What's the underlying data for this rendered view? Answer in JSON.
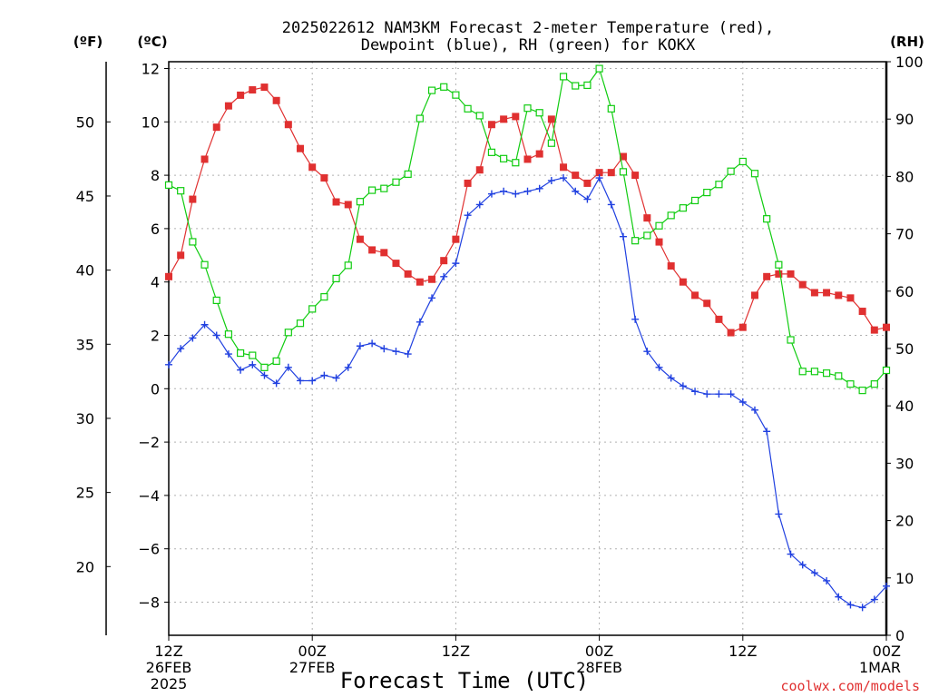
{
  "chart_data": {
    "type": "line",
    "title_line1": "2025022612 NAM3KM Forecast 2-meter Temperature (red),",
    "title_line2": "Dewpoint (blue), RH (green) for KOKX",
    "xlabel": "Forecast Time (UTC)",
    "credit": "coolwx.com/models",
    "unit_f": "(ºF)",
    "unit_c": "(ºC)",
    "unit_rh": "(RH)",
    "x_range_hours": [
      0,
      60
    ],
    "x_ticks": [
      {
        "hour": 0,
        "lines": [
          "12Z",
          "26FEB",
          "2025"
        ]
      },
      {
        "hour": 12,
        "lines": [
          "00Z",
          "27FEB"
        ]
      },
      {
        "hour": 24,
        "lines": [
          "12Z"
        ]
      },
      {
        "hour": 36,
        "lines": [
          "00Z",
          "28FEB"
        ]
      },
      {
        "hour": 48,
        "lines": [
          "12Z"
        ]
      },
      {
        "hour": 60,
        "lines": [
          "00Z",
          "1MAR"
        ]
      }
    ],
    "ylim_c": [
      -9.2,
      12.2
    ],
    "y_ticks_c": [
      12,
      10,
      8,
      6,
      4,
      2,
      0,
      -2,
      -4,
      -6,
      -8
    ],
    "y_ticks_c_labels": [
      "12",
      "10",
      "8",
      "6",
      "4",
      "2",
      "0",
      "−2",
      "−4",
      "−6",
      "−8"
    ],
    "y_ticks_f": [
      50,
      45,
      40,
      35,
      30,
      25,
      20
    ],
    "y_ticks_f_labels": [
      "50",
      "45",
      "40",
      "35",
      "30",
      "25",
      "20"
    ],
    "ylim_rh": [
      0,
      100
    ],
    "y_ticks_rh": [
      100,
      90,
      80,
      70,
      60,
      50,
      40,
      30,
      20,
      10,
      0
    ],
    "y_ticks_rh_labels": [
      "100",
      "90",
      "80",
      "70",
      "60",
      "50",
      "40",
      "30",
      "20",
      "10",
      "0"
    ],
    "grid": true,
    "colors": {
      "temperature": "#e03030",
      "dewpoint": "#2040e0",
      "rh": "#10cc10"
    },
    "series": [
      {
        "key": "temperature",
        "axis": "c",
        "marker": "filled-square",
        "values": [
          4.2,
          5.0,
          7.1,
          8.6,
          9.8,
          10.6,
          11.0,
          11.2,
          11.3,
          10.8,
          9.9,
          9.0,
          8.3,
          7.9,
          7.0,
          6.9,
          5.6,
          5.2,
          5.1,
          4.7,
          4.3,
          4.0,
          4.1,
          4.8,
          5.6,
          7.7,
          8.2,
          9.9,
          10.1,
          10.2,
          8.6,
          8.8,
          10.1,
          8.3,
          8.0,
          7.7,
          8.1,
          8.1,
          8.7,
          8.0,
          6.4,
          5.5,
          4.6,
          4.0,
          3.5,
          3.2,
          2.6,
          2.1,
          2.3,
          3.5,
          4.2,
          4.3,
          4.3,
          3.9,
          3.6,
          3.6,
          3.5,
          3.4,
          2.9,
          2.2,
          2.3
        ]
      },
      {
        "key": "dewpoint",
        "axis": "c",
        "marker": "plus",
        "values": [
          0.9,
          1.5,
          1.9,
          2.4,
          2.0,
          1.3,
          0.7,
          0.9,
          0.5,
          0.2,
          0.8,
          0.3,
          0.3,
          0.5,
          0.4,
          0.8,
          1.6,
          1.7,
          1.5,
          1.4,
          1.3,
          2.5,
          3.4,
          4.2,
          4.7,
          6.5,
          6.9,
          7.3,
          7.4,
          7.3,
          7.4,
          7.5,
          7.8,
          7.9,
          7.4,
          7.1,
          7.9,
          6.9,
          5.7,
          2.6,
          1.4,
          0.8,
          0.4,
          0.1,
          -0.1,
          -0.2,
          -0.2,
          -0.2,
          -0.5,
          -0.8,
          -1.6,
          -4.7,
          -6.2,
          -6.6,
          -6.9,
          -7.2,
          -7.8,
          -8.1,
          -8.2,
          -7.9,
          -7.4
        ]
      },
      {
        "key": "rh",
        "axis": "rh",
        "marker": "open-square",
        "values": [
          78.5,
          77.5,
          68.6,
          64.6,
          58.4,
          52.5,
          49.2,
          48.8,
          46.7,
          47.8,
          52.8,
          54.4,
          56.9,
          59.0,
          62.2,
          64.5,
          75.6,
          77.6,
          77.9,
          79.0,
          80.4,
          90.1,
          95.0,
          95.6,
          94.2,
          91.8,
          90.6,
          84.2,
          83.1,
          82.4,
          91.9,
          91.1,
          85.8,
          97.4,
          95.8,
          95.9,
          98.8,
          91.8,
          80.8,
          68.8,
          69.7,
          71.4,
          73.2,
          74.5,
          75.8,
          77.2,
          78.6,
          80.9,
          82.6,
          80.5,
          72.6,
          64.6,
          51.5,
          46.0,
          46.0,
          45.7,
          45.2,
          43.8,
          42.7,
          43.8,
          46.2
        ]
      }
    ]
  }
}
